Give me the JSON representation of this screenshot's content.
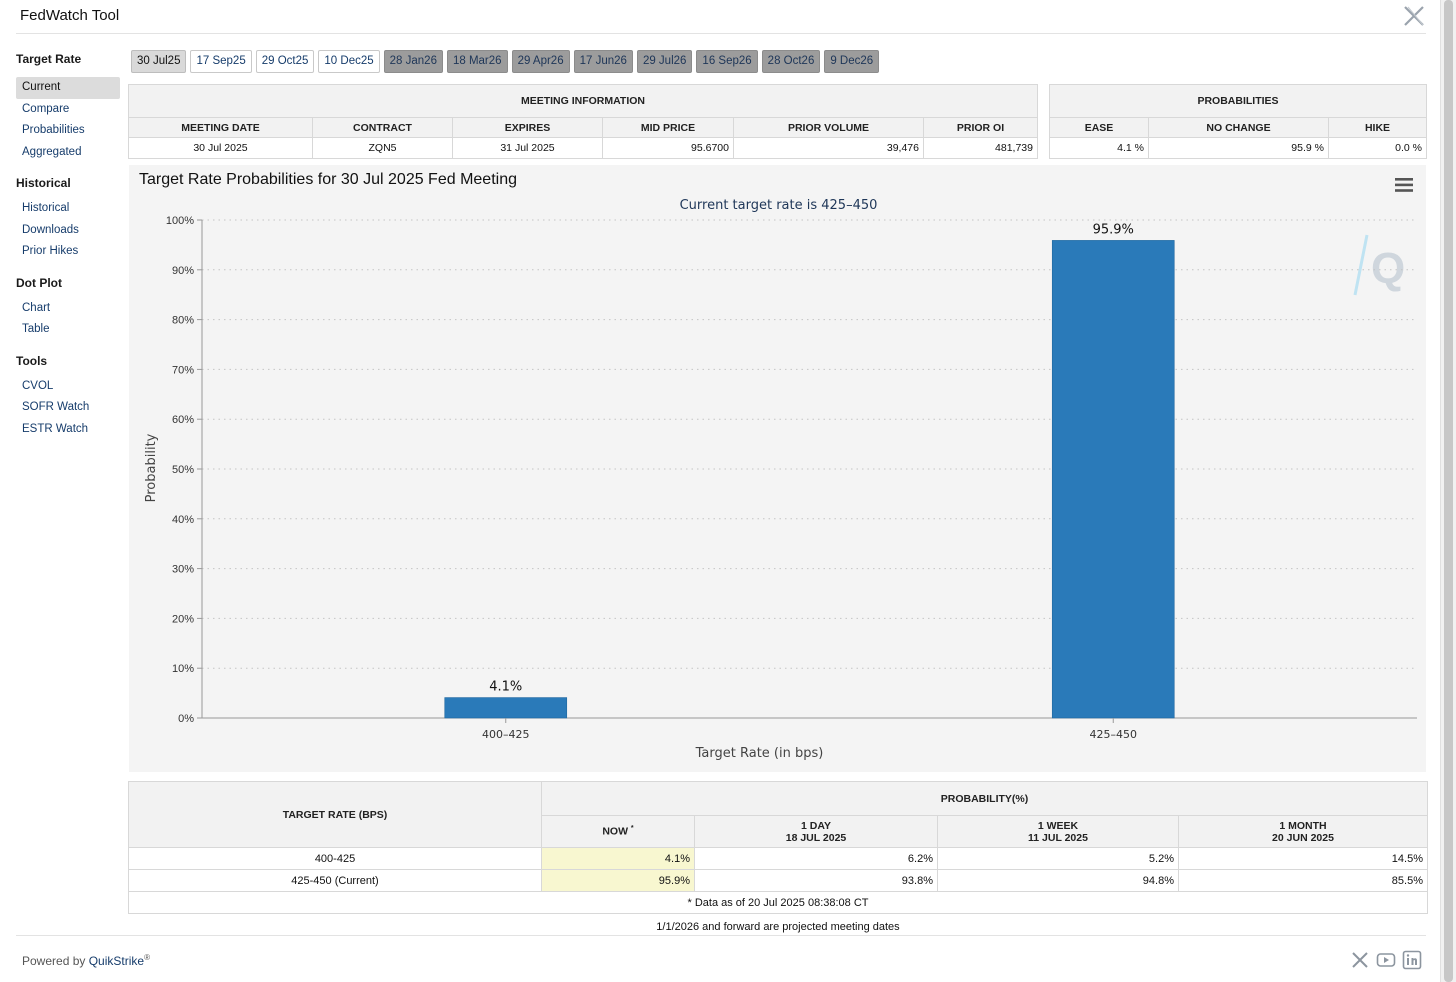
{
  "header": {
    "title": "FedWatch Tool"
  },
  "sidebar": {
    "sections": [
      {
        "title": "Target Rate",
        "items": [
          "Current",
          "Compare",
          "Probabilities",
          "Aggregated"
        ]
      },
      {
        "title": "Historical",
        "items": [
          "Historical",
          "Downloads",
          "Prior Hikes"
        ]
      },
      {
        "title": "Dot Plot",
        "items": [
          "Chart",
          "Table"
        ]
      },
      {
        "title": "Tools",
        "items": [
          "CVOL",
          "SOFR Watch",
          "ESTR Watch"
        ]
      }
    ],
    "active_item": "Current"
  },
  "meeting_tabs": [
    "30 Jul25",
    "17 Sep25",
    "29 Oct25",
    "10 Dec25",
    "28 Jan26",
    "18 Mar26",
    "29 Apr26",
    "17 Jun26",
    "29 Jul26",
    "16 Sep26",
    "28 Oct26",
    "9 Dec26"
  ],
  "meeting_info": {
    "heading": "MEETING INFORMATION",
    "columns": [
      "MEETING DATE",
      "CONTRACT",
      "EXPIRES",
      "MID PRICE",
      "PRIOR VOLUME",
      "PRIOR OI"
    ],
    "row": [
      "30 Jul 2025",
      "ZQN5",
      "31 Jul 2025",
      "95.6700",
      "39,476",
      "481,739"
    ]
  },
  "probabilities": {
    "heading": "PROBABILITIES",
    "columns": [
      "EASE",
      "NO CHANGE",
      "HIKE"
    ],
    "row": [
      "4.1 %",
      "95.9 %",
      "0.0 %"
    ]
  },
  "chart_panel": {
    "title": "Target Rate Probabilities for 30 Jul 2025 Fed Meeting"
  },
  "chart_data": {
    "type": "bar",
    "title": "Target Rate Probabilities for 30 Jul 2025 Fed Meeting",
    "subtitle": "Current target rate is 425–450",
    "categories": [
      "400–425",
      "425–450"
    ],
    "values": [
      4.1,
      95.9
    ],
    "value_labels": [
      "4.1%",
      "95.9%"
    ],
    "xlabel": "Target Rate (in bps)",
    "ylabel": "Probability",
    "ylim": [
      0,
      100
    ],
    "yticks": [
      "0%",
      "10%",
      "20%",
      "30%",
      "40%",
      "50%",
      "60%",
      "70%",
      "80%",
      "90%",
      "100%"
    ],
    "grid": true,
    "bar_color": "#2a7ab9"
  },
  "rate_table": {
    "col_target": "TARGET RATE (BPS)",
    "col_prob": "PROBABILITY(%)",
    "sub_cols": [
      {
        "line1": "NOW",
        "line2": ""
      },
      {
        "line1": "1 DAY",
        "line2": "18 JUL 2025"
      },
      {
        "line1": "1 WEEK",
        "line2": "11 JUL 2025"
      },
      {
        "line1": "1 MONTH",
        "line2": "20 JUN 2025"
      }
    ],
    "now_marker": "*",
    "rows": [
      {
        "rate": "400-425",
        "values": [
          "4.1%",
          "6.2%",
          "5.2%",
          "14.5%"
        ]
      },
      {
        "rate": "425-450 (Current)",
        "values": [
          "95.9%",
          "93.8%",
          "94.8%",
          "85.5%"
        ]
      }
    ],
    "footnote": "* Data as of 20 Jul 2025 08:38:08 CT"
  },
  "projected_note": "1/1/2026 and forward are projected meeting dates",
  "footer": {
    "powered_by": "Powered by",
    "brand": "QuikStrike",
    "reg": "®"
  },
  "colors": {
    "bar": "#2a7ab9",
    "link": "#163c6b",
    "now_highlight": "#f8f7d0",
    "projected_tab": "#9c9c9c"
  }
}
